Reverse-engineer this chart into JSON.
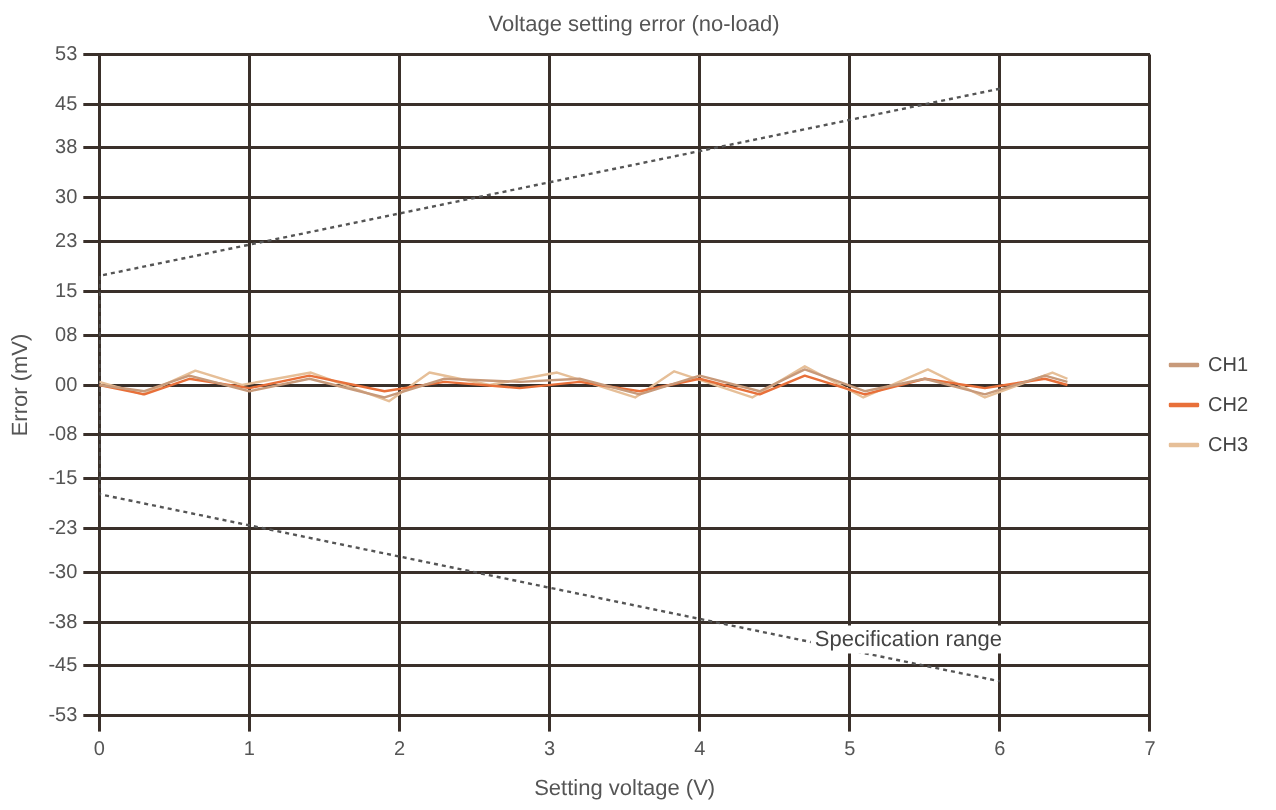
{
  "chart_data": {
    "type": "line",
    "title": "Voltage setting error (no-load)",
    "xlabel": "Setting voltage (V)",
    "ylabel": "Error (mV)",
    "xlim": [
      0,
      7
    ],
    "xticks": [
      0,
      1,
      2,
      3,
      4,
      5,
      6,
      7
    ],
    "ylim": [
      -53,
      53
    ],
    "yticks": [
      53,
      45,
      38,
      30,
      23,
      15,
      {
        "value": 8,
        "label": "08"
      },
      {
        "value": 0,
        "label": "00"
      },
      {
        "value": -8,
        "label": "-08"
      },
      -15,
      -23,
      -30,
      -38,
      -45,
      -53
    ],
    "grid": true,
    "legend": "right",
    "marker": "none",
    "line_style": "solid",
    "series": [
      {
        "name": "CH1",
        "color": "#c89a7a",
        "x": [
          0,
          0.3,
          0.6,
          1.0,
          1.4,
          1.9,
          2.3,
          2.8,
          3.2,
          3.6,
          4.0,
          4.4,
          4.7,
          5.1,
          5.5,
          5.9,
          6.3,
          6.45
        ],
        "values": [
          0,
          -1,
          1.5,
          -1,
          1,
          -2,
          1,
          0.5,
          1,
          -1.5,
          1.5,
          -1,
          2.5,
          -1,
          1,
          -1.5,
          1.5,
          0.5
        ]
      },
      {
        "name": "CH2",
        "color": "#e8703a",
        "x": [
          0,
          0.3,
          0.6,
          1.0,
          1.4,
          1.9,
          2.3,
          2.8,
          3.2,
          3.6,
          4.0,
          4.4,
          4.7,
          5.1,
          5.5,
          5.9,
          6.3,
          6.45
        ],
        "values": [
          0,
          -1.5,
          1,
          -0.5,
          1.5,
          -1,
          0.5,
          -0.5,
          0.5,
          -1,
          1,
          -1.5,
          1.5,
          -1.5,
          1,
          -0.5,
          1,
          0
        ]
      },
      {
        "name": "CH3",
        "color": "#e6bf98",
        "x": [
          0,
          0.29,
          0.64,
          0.95,
          1.41,
          1.93,
          2.2,
          2.6,
          3.05,
          3.57,
          3.83,
          4.35,
          4.7,
          5.09,
          5.52,
          5.9,
          6.35,
          6.45
        ],
        "values": [
          0.5,
          -1.5,
          2.3,
          0,
          2,
          -2.6,
          2,
          0,
          2,
          -2,
          2.2,
          -2,
          3,
          -2,
          2.5,
          -2,
          2,
          1
        ]
      },
      {
        "color": "#555555",
        "line_style": "dotted",
        "x": [
          6,
          0,
          0,
          6
        ],
        "values": [
          47.5,
          17.5,
          -17.5,
          -47.5
        ]
      }
    ],
    "annotations": [
      "Specification range"
    ]
  }
}
